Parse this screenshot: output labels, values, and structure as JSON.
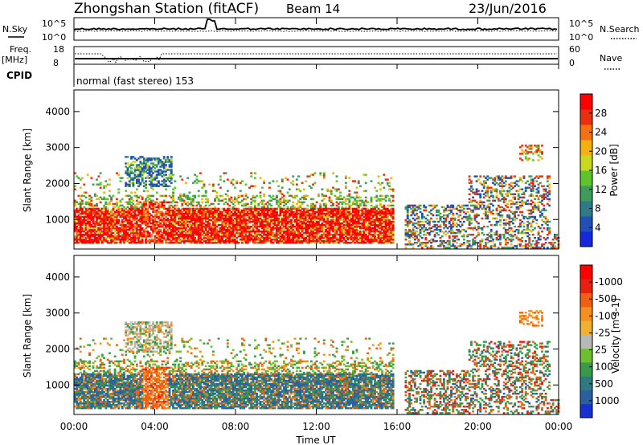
{
  "header": {
    "title": "Zhongshan Station (fitACF)",
    "beam": "Beam 14",
    "date": "23/Jun/2016"
  },
  "top_panels": {
    "nsky_label": "N.Sky",
    "nsearch_label": "N.Search",
    "nsky_ticks": [
      "10^5",
      "10^0"
    ],
    "nsearch_ticks": [
      "10^5",
      "10^0"
    ],
    "freq_label": "Freq.",
    "freq_unit": "[MHz]",
    "freq_ticks": [
      "18",
      "8"
    ],
    "nave_label": "Nave",
    "nave_ticks": [
      "60",
      "0"
    ],
    "cpid_label": "CPID",
    "cpid_text": "normal (fast stereo) 153"
  },
  "chart_data": [
    {
      "type": "heatmap",
      "name": "power",
      "xlabel": "",
      "ylabel": "Slant Range [km]",
      "xlim": [
        0,
        24
      ],
      "ylim": [
        180,
        4600
      ],
      "yticks": [
        1000,
        2000,
        3000,
        4000
      ],
      "colorbar": {
        "label": "Power [dB]",
        "ticks": [
          "4",
          "8",
          "12",
          "16",
          "20",
          "24",
          "28"
        ],
        "colors": [
          "#1428e0",
          "#2050b4",
          "#2e7a88",
          "#3d9c5a",
          "#5ec42c",
          "#c8d820",
          "#f4b010",
          "#f47010",
          "#e83010",
          "#ff0000"
        ]
      }
    },
    {
      "type": "heatmap",
      "name": "velocity",
      "xlabel": "Time UT",
      "ylabel": "Slant Range [km]",
      "xlim": [
        0,
        24
      ],
      "ylim": [
        180,
        4600
      ],
      "yticks": [
        1000,
        2000,
        3000,
        4000
      ],
      "xticks": [
        "00:00",
        "04:00",
        "08:00",
        "12:00",
        "16:00",
        "20:00",
        "00:00"
      ],
      "colorbar": {
        "label": "Velocity [m s-1]",
        "ticks": [
          "1000",
          "500",
          "100",
          "25",
          "-25",
          "-100",
          "-500",
          "-1000"
        ],
        "colors": [
          "#1830d0",
          "#2a60a0",
          "#2f7a80",
          "#3a9a4a",
          "#6cc030",
          "#b8b8b8",
          "#f0b030",
          "#f49020",
          "#f06010",
          "#e82010",
          "#ff0000"
        ]
      }
    }
  ]
}
